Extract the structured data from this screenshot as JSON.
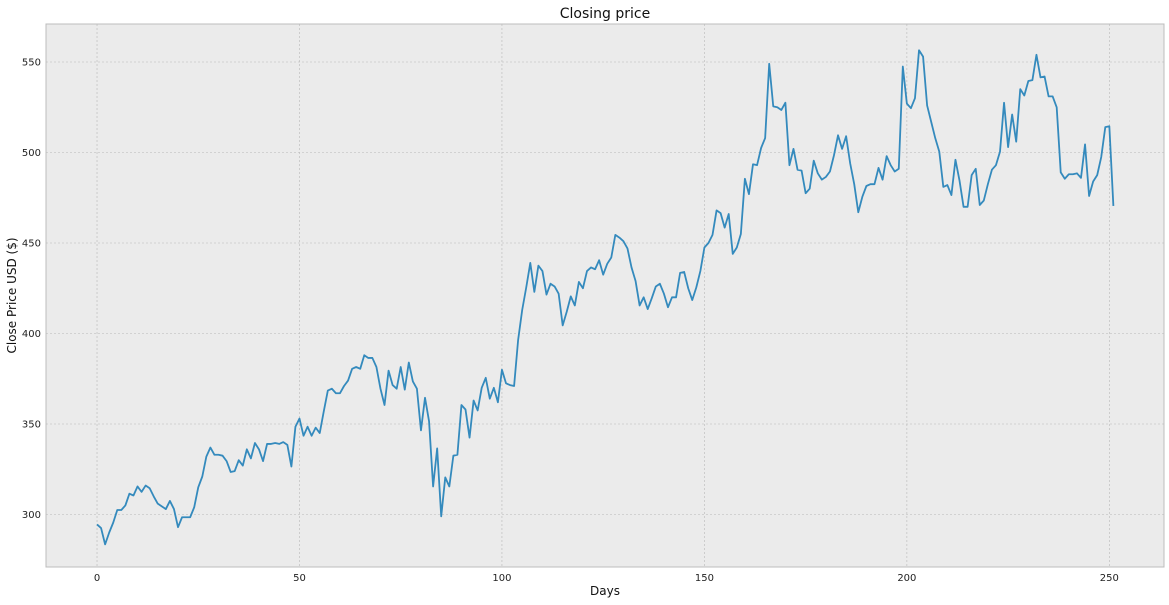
{
  "chart_data": {
    "type": "line",
    "title": "Closing price",
    "xlabel": "Days",
    "ylabel": "Close Price USD ($)",
    "xlim": [
      -12.6,
      263.5
    ],
    "ylim": [
      271,
      571
    ],
    "xticks": [
      0,
      50,
      100,
      150,
      200,
      250
    ],
    "yticks": [
      300,
      350,
      400,
      450,
      500,
      550
    ],
    "grid": true,
    "legend": "none",
    "colors": {
      "line": "#348ABD",
      "plot_bg": "#EBEBEB",
      "grid": "#B8B8B8",
      "frame": "#BCBCBC"
    },
    "series": [
      {
        "values": [
          294.5,
          292.5,
          283.5,
          290.0,
          295.5,
          302.5,
          302.5,
          305.0,
          311.5,
          310.5,
          315.5,
          312.5,
          316.0,
          314.5,
          310.0,
          306.0,
          304.5,
          303.0,
          307.5,
          303.0,
          293.0,
          298.5,
          298.5,
          298.5,
          304.0,
          315.0,
          321.0,
          332.0,
          337.0,
          333.0,
          333.0,
          332.5,
          329.5,
          323.5,
          324.0,
          330.0,
          327.0,
          336.0,
          331.0,
          339.5,
          336.0,
          329.5,
          339.0,
          339.0,
          339.5,
          339.0,
          340.0,
          338.5,
          326.5,
          348.5,
          353.0,
          343.5,
          348.5,
          343.5,
          348.0,
          345.0,
          357.0,
          368.5,
          369.5,
          367.0,
          367.0,
          371.0,
          374.0,
          380.5,
          381.5,
          380.5,
          388.0,
          386.5,
          386.5,
          381.5,
          369.5,
          360.5,
          379.5,
          371.5,
          369.5,
          381.5,
          369.0,
          384.0,
          373.5,
          369.5,
          346.5,
          364.5,
          351.5,
          315.5,
          336.5,
          299.0,
          320.5,
          315.5,
          332.5,
          333.0,
          360.5,
          358.0,
          342.5,
          363.0,
          357.5,
          370.0,
          375.5,
          364.0,
          370.0,
          362.0,
          380.0,
          372.5,
          371.5,
          371.0,
          396.5,
          413.0,
          425.5,
          439.0,
          423.0,
          437.5,
          434.5,
          421.5,
          427.5,
          426.0,
          422.0,
          404.5,
          412.0,
          420.5,
          415.5,
          428.5,
          425.0,
          434.5,
          436.5,
          435.5,
          440.5,
          432.5,
          438.5,
          442.0,
          454.5,
          453.0,
          451.0,
          447.0,
          436.5,
          429.0,
          415.5,
          420.0,
          413.5,
          419.5,
          426.0,
          427.5,
          422.0,
          414.5,
          420.0,
          420.0,
          433.5,
          434.0,
          425.0,
          418.5,
          425.5,
          434.5,
          447.5,
          450.0,
          454.5,
          468.0,
          466.5,
          458.5,
          466.0,
          444.0,
          447.5,
          455.0,
          485.5,
          477.0,
          493.5,
          493.0,
          502.5,
          508.0,
          549.0,
          525.5,
          525.0,
          523.5,
          527.5,
          493.0,
          502.0,
          490.5,
          490.0,
          477.5,
          480.0,
          495.5,
          488.5,
          485.0,
          486.5,
          489.5,
          498.5,
          509.5,
          502.0,
          509.0,
          494.0,
          482.5,
          467.0,
          475.5,
          481.5,
          482.5,
          482.5,
          491.5,
          485.0,
          498.0,
          493.0,
          489.5,
          491.0,
          547.5,
          527.0,
          524.5,
          530.0,
          556.5,
          553.0,
          526.0,
          517.0,
          508.0,
          500.5,
          481.0,
          482.0,
          476.5,
          496.0,
          484.5,
          470.0,
          470.0,
          487.5,
          491.0,
          471.0,
          473.5,
          482.5,
          490.5,
          493.0,
          500.5,
          527.5,
          503.0,
          521.0,
          506.0,
          535.0,
          531.5,
          539.5,
          540.0,
          554.0,
          541.5,
          542.0,
          531.0,
          531.0,
          525.0,
          489.0,
          485.5,
          488.0,
          488.0,
          488.5,
          486.0,
          504.5,
          476.0,
          484.0,
          487.5,
          497.5,
          514.0,
          514.5,
          470.5
        ]
      }
    ]
  }
}
